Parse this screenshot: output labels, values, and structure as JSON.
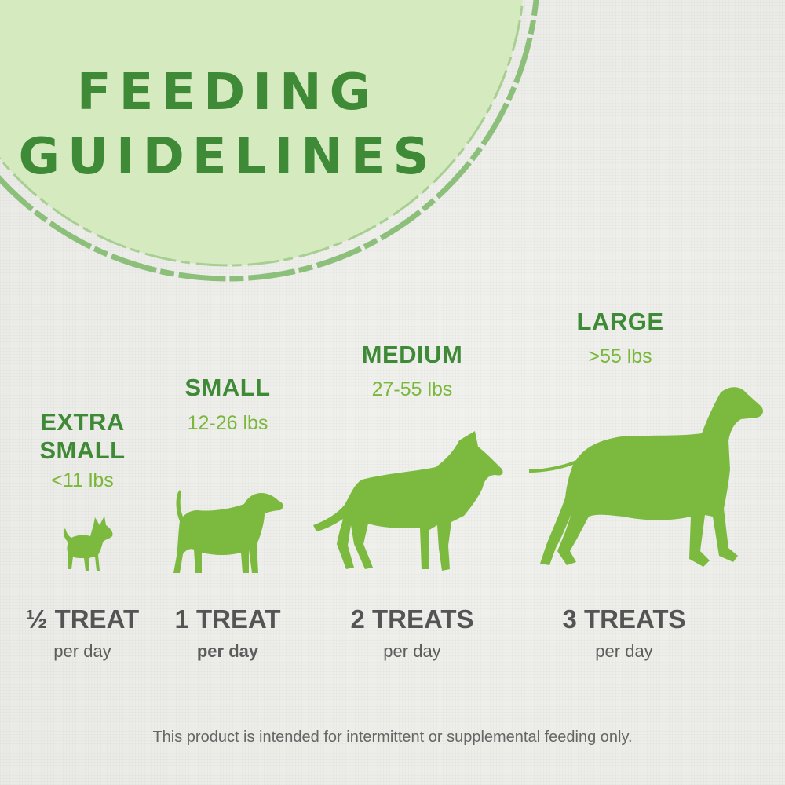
{
  "title": {
    "line1": "FEEDING",
    "line2": "GUIDELINES"
  },
  "colors": {
    "title_green": "#3e8a37",
    "circle_fill": "#d6eac0",
    "circle_ring": "#8cc07a",
    "dog_green": "#7cba3f",
    "weight_green": "#79b83a",
    "text_gray": "#545454"
  },
  "sizes": [
    {
      "label": "EXTRA SMALL",
      "weight": "<11 lbs",
      "treats": "½ TREAT",
      "per": "per day",
      "icon": "chihuahua-silhouette-icon"
    },
    {
      "label": "SMALL",
      "weight": "12-26 lbs",
      "treats": "1 TREAT",
      "per": "per day",
      "icon": "beagle-silhouette-icon"
    },
    {
      "label": "MEDIUM",
      "weight": "27-55 lbs",
      "treats": "2 TREATS",
      "per": "per day",
      "icon": "shepherd-silhouette-icon"
    },
    {
      "label": "LARGE",
      "weight": ">55 lbs",
      "treats": "3 TREATS",
      "per": "per day",
      "icon": "great-dane-silhouette-icon"
    }
  ],
  "disclaimer": "This product is intended for intermittent or supplemental feeding only."
}
